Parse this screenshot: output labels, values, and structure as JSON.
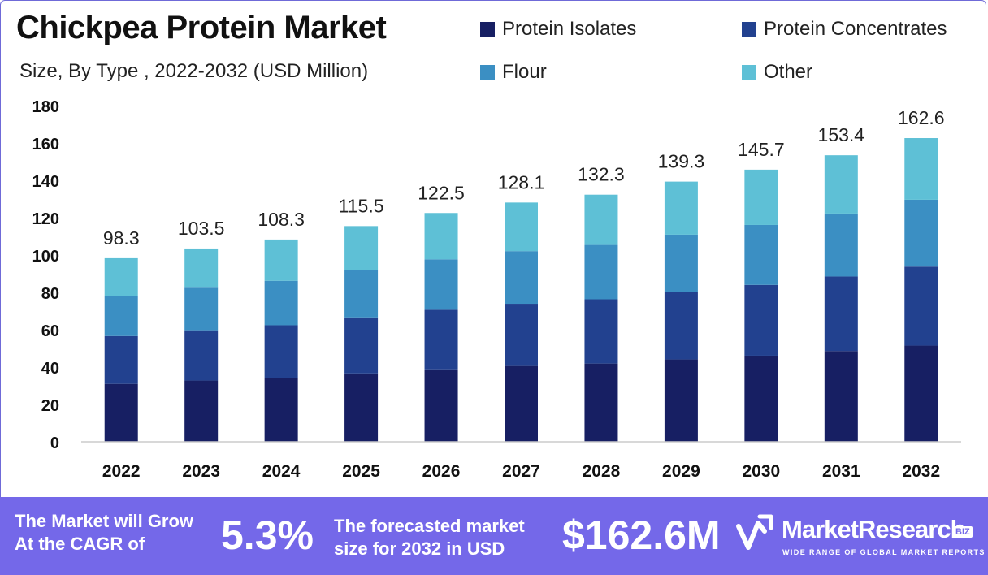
{
  "header": {
    "title": "Chickpea Protein Market",
    "subtitle": "Size, By Type , 2022-2032 (USD Million)"
  },
  "legend": [
    {
      "label": "Protein Isolates",
      "color": "#171f63"
    },
    {
      "label": "Protein Concentrates",
      "color": "#22418f"
    },
    {
      "label": "Flour",
      "color": "#3b8fc3"
    },
    {
      "label": "Other",
      "color": "#5ec0d6"
    }
  ],
  "chart_data": {
    "type": "bar",
    "stacked": true,
    "categories": [
      "2022",
      "2023",
      "2024",
      "2025",
      "2026",
      "2027",
      "2028",
      "2029",
      "2030",
      "2031",
      "2032"
    ],
    "series": [
      {
        "name": "Protein Isolates",
        "color": "#171f63",
        "values": [
          31.0,
          32.8,
          34.3,
          36.6,
          38.8,
          40.6,
          41.9,
          44.1,
          46.1,
          48.6,
          51.5
        ]
      },
      {
        "name": "Protein Concentrates",
        "color": "#22418f",
        "values": [
          25.6,
          26.9,
          28.1,
          30.0,
          31.9,
          33.3,
          34.4,
          36.2,
          37.9,
          39.9,
          42.3
        ]
      },
      {
        "name": "Flour",
        "color": "#3b8fc3",
        "values": [
          21.6,
          22.8,
          23.8,
          25.4,
          27.0,
          28.2,
          29.1,
          30.6,
          32.1,
          33.7,
          35.8
        ]
      },
      {
        "name": "Other",
        "color": "#5ec0d6",
        "values": [
          20.1,
          21.0,
          22.1,
          23.5,
          24.8,
          26.0,
          26.9,
          28.4,
          29.6,
          31.2,
          33.0
        ]
      }
    ],
    "totals": [
      "98.3",
      "103.5",
      "108.3",
      "115.5",
      "122.5",
      "128.1",
      "132.3",
      "139.3",
      "145.7",
      "153.4",
      "162.6"
    ],
    "yticks": [
      "0",
      "20",
      "40",
      "60",
      "80",
      "100",
      "120",
      "140",
      "160",
      "180"
    ],
    "ylim": [
      0,
      180
    ],
    "grid": false,
    "legend_position": "top-right"
  },
  "banner": {
    "cagr_text_line1": "The Market will Grow",
    "cagr_text_line2": "At the CAGR of",
    "cagr_value": "5.3%",
    "forecast_text_line1": "The forecasted market",
    "forecast_text_line2": "size for 2032 in USD",
    "forecast_value": "$162.6M",
    "brand_name": "MarketResearch",
    "brand_suffix": "BIZ",
    "brand_tagline": "WIDE RANGE OF GLOBAL MARKET REPORTS",
    "background_color": "#7468e9"
  }
}
